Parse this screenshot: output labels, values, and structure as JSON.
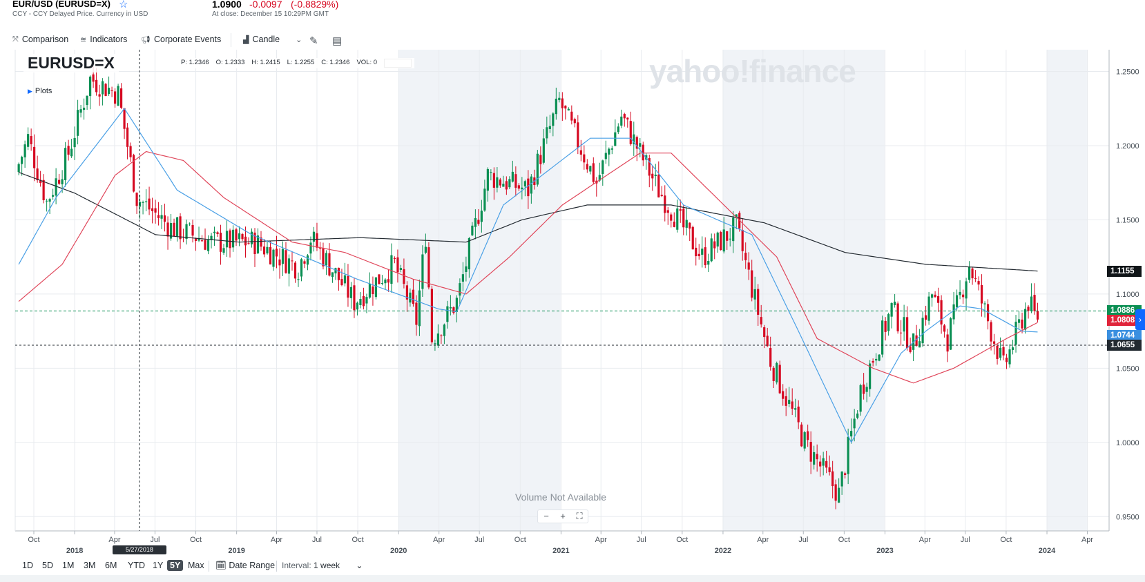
{
  "header": {
    "symbol_title": "EUR/USD (EURUSD=X)",
    "subtitle": "CCY - CCY Delayed Price. Currency in USD",
    "price": "1.0900",
    "change": "-0.0097",
    "change_pct": "(-0.8829%)",
    "close_time": "At close: December 15 10:29PM GMT",
    "star_icon": "star-icon"
  },
  "toolbar": {
    "comparison": "Comparison",
    "indicators": "Indicators",
    "corporate_events": "Corporate Events",
    "chart_type": "Candle"
  },
  "chart_overlay": {
    "symbol": "EURUSD=X",
    "plots": "Plots",
    "ohlc": {
      "p": "P: 1.2346",
      "o": "O: 1.2333",
      "h": "H: 1.2415",
      "l": "L: 1.2255",
      "c": "C: 1.2346",
      "vol": "VOL: 0"
    },
    "watermark": "yahoo!finance",
    "volume_note": "Volume Not Available",
    "zoom_out": "−",
    "zoom_in": "+",
    "zoom_fit": "⛶",
    "crosshair_date": "5/27/2018"
  },
  "right_labels": {
    "sma200": "1.1155",
    "last_price": "1.0886",
    "sma50": "1.0808",
    "sma20": "1.0744",
    "crosshair": "1.0655",
    "colors": {
      "sma200": "#101518",
      "last_price": "#0b8f53",
      "sma50": "#e0243a",
      "sma20": "#3a8fe0",
      "crosshair": "#232a31"
    }
  },
  "range_bar": {
    "ranges": [
      "1D",
      "5D",
      "1M",
      "3M",
      "6M",
      "YTD",
      "1Y",
      "5Y",
      "Max"
    ],
    "active": "5Y",
    "date_range": "Date Range",
    "interval_label": "Interval:",
    "interval_value": "1 week"
  },
  "chart_data": {
    "type": "candlestick",
    "symbol": "EURUSD=X",
    "interval": "1 week",
    "yticks": [
      "1.2500",
      "1.2000",
      "1.1500",
      "1.1000",
      "1.0500",
      "1.0000",
      "0.9500"
    ],
    "ylim": [
      0.945,
      1.26
    ],
    "x_months": [
      {
        "label": "Oct",
        "date": "2017-10-01"
      },
      {
        "label": "2018",
        "date": "2018-01-01",
        "year": true
      },
      {
        "label": "Apr",
        "date": "2018-04-01"
      },
      {
        "label": "Jul",
        "date": "2018-07-01"
      },
      {
        "label": "Oct",
        "date": "2018-10-01"
      },
      {
        "label": "2019",
        "date": "2019-01-01",
        "year": true
      },
      {
        "label": "Apr",
        "date": "2019-04-01"
      },
      {
        "label": "Jul",
        "date": "2019-07-01"
      },
      {
        "label": "Oct",
        "date": "2019-10-01"
      },
      {
        "label": "2020",
        "date": "2020-01-01",
        "year": true
      },
      {
        "label": "Apr",
        "date": "2020-04-01"
      },
      {
        "label": "Jul",
        "date": "2020-07-01"
      },
      {
        "label": "Oct",
        "date": "2020-10-01"
      },
      {
        "label": "2021",
        "date": "2021-01-01",
        "year": true
      },
      {
        "label": "Apr",
        "date": "2021-04-01"
      },
      {
        "label": "Jul",
        "date": "2021-07-01"
      },
      {
        "label": "Oct",
        "date": "2021-10-01"
      },
      {
        "label": "2022",
        "date": "2022-01-01",
        "year": true
      },
      {
        "label": "Apr",
        "date": "2022-04-01"
      },
      {
        "label": "Jul",
        "date": "2022-07-01"
      },
      {
        "label": "Oct",
        "date": "2022-10-01"
      },
      {
        "label": "2023",
        "date": "2023-01-01",
        "year": true
      },
      {
        "label": "Apr",
        "date": "2023-04-01"
      },
      {
        "label": "Jul",
        "date": "2023-07-01"
      },
      {
        "label": "Oct",
        "date": "2023-10-01"
      },
      {
        "label": "2024",
        "date": "2024-01-01",
        "year": true
      },
      {
        "label": "Apr",
        "date": "2024-04-01"
      }
    ],
    "price_path": [
      [
        "2017-08-28",
        1.182
      ],
      [
        "2017-09-25",
        1.205
      ],
      [
        "2017-11-06",
        1.162
      ],
      [
        "2017-12-25",
        1.195
      ],
      [
        "2018-02-12",
        1.245
      ],
      [
        "2018-04-16",
        1.235
      ],
      [
        "2018-05-28",
        1.165
      ],
      [
        "2018-08-13",
        1.145
      ],
      [
        "2018-11-12",
        1.135
      ],
      [
        "2019-02-18",
        1.135
      ],
      [
        "2019-05-27",
        1.118
      ],
      [
        "2019-06-24",
        1.138
      ],
      [
        "2019-09-30",
        1.095
      ],
      [
        "2019-12-30",
        1.12
      ],
      [
        "2020-02-17",
        1.082
      ],
      [
        "2020-03-09",
        1.14
      ],
      [
        "2020-03-23",
        1.07
      ],
      [
        "2020-05-18",
        1.095
      ],
      [
        "2020-07-27",
        1.18
      ],
      [
        "2020-10-26",
        1.17
      ],
      [
        "2021-01-04",
        1.23
      ],
      [
        "2021-03-29",
        1.175
      ],
      [
        "2021-05-24",
        1.22
      ],
      [
        "2021-08-16",
        1.17
      ],
      [
        "2021-11-22",
        1.125
      ],
      [
        "2022-02-07",
        1.145
      ],
      [
        "2022-04-25",
        1.055
      ],
      [
        "2022-07-11",
        1.0
      ],
      [
        "2022-09-26",
        0.965
      ],
      [
        "2022-11-14",
        1.035
      ],
      [
        "2023-01-23",
        1.09
      ],
      [
        "2023-03-13",
        1.065
      ],
      [
        "2023-04-24",
        1.1
      ],
      [
        "2023-05-29",
        1.07
      ],
      [
        "2023-07-17",
        1.12
      ],
      [
        "2023-10-02",
        1.05
      ],
      [
        "2023-11-27",
        1.095
      ],
      [
        "2023-12-11",
        1.085
      ]
    ],
    "sma_200": [
      [
        "2017-08-28",
        1.182
      ],
      [
        "2018-01-01",
        1.168
      ],
      [
        "2018-07-02",
        1.14
      ],
      [
        "2019-01-07",
        1.135
      ],
      [
        "2019-10-07",
        1.138
      ],
      [
        "2020-06-01",
        1.135
      ],
      [
        "2020-10-05",
        1.15
      ],
      [
        "2021-03-01",
        1.16
      ],
      [
        "2021-09-06",
        1.16
      ],
      [
        "2022-04-04",
        1.148
      ],
      [
        "2022-10-03",
        1.128
      ],
      [
        "2023-04-03",
        1.12
      ],
      [
        "2023-12-11",
        1.1155
      ]
    ],
    "sma_50": [
      [
        "2017-08-28",
        1.095
      ],
      [
        "2017-12-04",
        1.12
      ],
      [
        "2018-04-02",
        1.18
      ],
      [
        "2018-06-11",
        1.196
      ],
      [
        "2018-09-03",
        1.19
      ],
      [
        "2018-12-03",
        1.165
      ],
      [
        "2019-05-06",
        1.135
      ],
      [
        "2019-09-02",
        1.128
      ],
      [
        "2020-02-03",
        1.11
      ],
      [
        "2020-06-01",
        1.1
      ],
      [
        "2020-09-07",
        1.125
      ],
      [
        "2021-01-04",
        1.16
      ],
      [
        "2021-06-28",
        1.195
      ],
      [
        "2021-09-06",
        1.195
      ],
      [
        "2022-01-03",
        1.16
      ],
      [
        "2022-05-02",
        1.125
      ],
      [
        "2022-08-01",
        1.07
      ],
      [
        "2022-12-05",
        1.05
      ],
      [
        "2023-03-06",
        1.04
      ],
      [
        "2023-06-05",
        1.05
      ],
      [
        "2023-10-02",
        1.07
      ],
      [
        "2023-12-11",
        1.0808
      ]
    ],
    "sma_20": [
      [
        "2017-08-28",
        1.12
      ],
      [
        "2017-11-20",
        1.165
      ],
      [
        "2018-04-23",
        1.225
      ],
      [
        "2018-08-20",
        1.17
      ],
      [
        "2019-02-04",
        1.14
      ],
      [
        "2019-09-30",
        1.11
      ],
      [
        "2020-03-30",
        1.09
      ],
      [
        "2020-05-11",
        1.088
      ],
      [
        "2020-08-24",
        1.16
      ],
      [
        "2021-03-08",
        1.205
      ],
      [
        "2021-06-07",
        1.205
      ],
      [
        "2021-10-04",
        1.16
      ],
      [
        "2022-03-07",
        1.14
      ],
      [
        "2022-06-20",
        1.075
      ],
      [
        "2022-10-17",
        1.0
      ],
      [
        "2023-02-06",
        1.06
      ],
      [
        "2023-04-03",
        1.075
      ],
      [
        "2023-06-19",
        1.092
      ],
      [
        "2023-08-07",
        1.09
      ],
      [
        "2023-11-06",
        1.075
      ],
      [
        "2023-12-11",
        1.0744
      ]
    ],
    "last_price": 1.0886,
    "crosshair_price": 1.0655,
    "crosshair_date": "2018-05-27",
    "highlight_years": [
      "2020",
      "2022"
    ],
    "colors": {
      "up": "#0b8f53",
      "down": "#d60a22",
      "sma20": "#4aa0e6",
      "sma50": "#e0465a",
      "sma200": "#232a31",
      "grid": "#e8ebef",
      "shade": "#f0f3f7"
    }
  }
}
